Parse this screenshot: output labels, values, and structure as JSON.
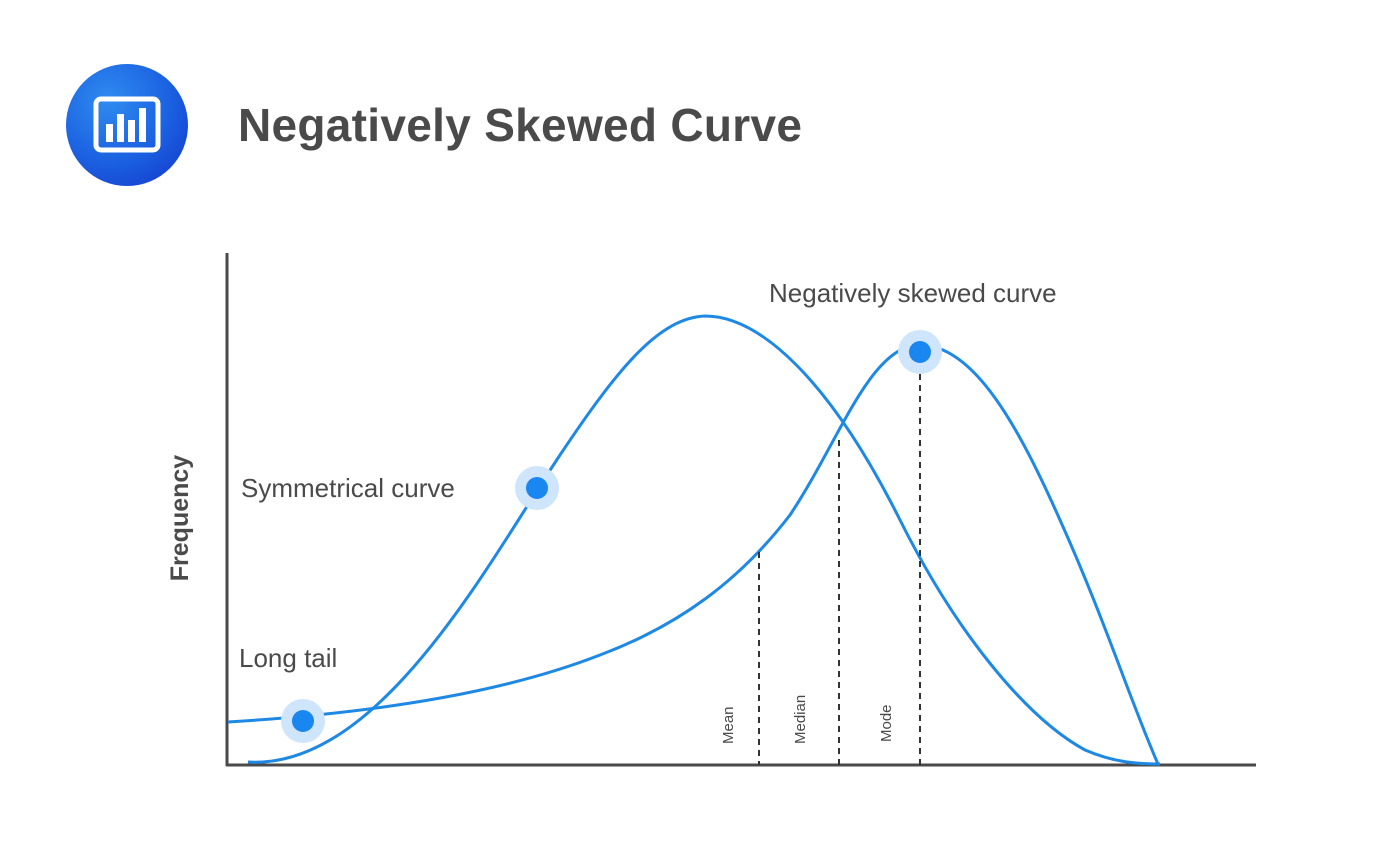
{
  "header": {
    "title": "Negatively Skewed Curve",
    "logo_icon": "bar-chart-icon"
  },
  "diagram": {
    "y_axis_label": "Frequency",
    "annotations": {
      "negatively_skewed": "Negatively skewed curve",
      "symmetrical": "Symmetrical curve",
      "long_tail": "Long tail"
    },
    "markers": {
      "mean": "Mean",
      "median": "Median",
      "mode": "Mode"
    }
  },
  "colors": {
    "curve": "#1e88e5",
    "dot": "#1a86ef",
    "dot_halo": "#cfe5fb",
    "text": "#4a4a4a",
    "axis": "#4a4a4a",
    "logo_gradient_start": "#2f8bf0",
    "logo_gradient_end": "#1433c9"
  }
}
